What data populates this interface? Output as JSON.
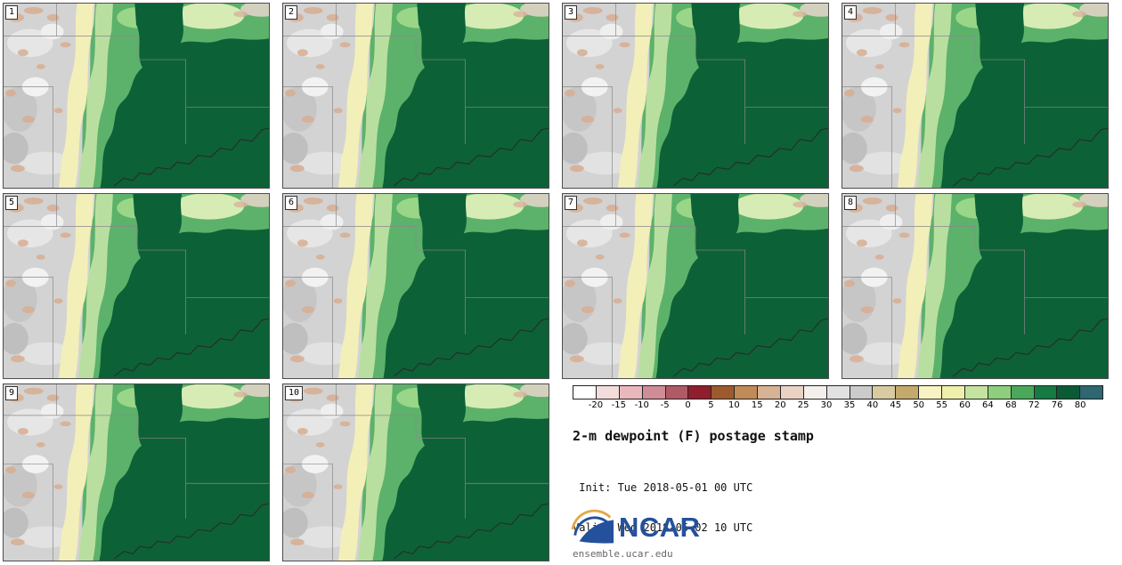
{
  "panels": [
    {
      "label": "1"
    },
    {
      "label": "2"
    },
    {
      "label": "3"
    },
    {
      "label": "4"
    },
    {
      "label": "5"
    },
    {
      "label": "6"
    },
    {
      "label": "7"
    },
    {
      "label": "8"
    },
    {
      "label": "9"
    },
    {
      "label": "10"
    }
  ],
  "colorbar": {
    "tick_labels": [
      "-20",
      "-15",
      "-10",
      "-5",
      "0",
      "5",
      "10",
      "15",
      "20",
      "25",
      "30",
      "35",
      "40",
      "45",
      "50",
      "55",
      "60",
      "64",
      "68",
      "72",
      "76",
      "80"
    ],
    "segment_colors": [
      "#ffffff",
      "#f3dcdc",
      "#e9b8bd",
      "#cf8d98",
      "#b05a66",
      "#8f1f2c",
      "#9c5b2e",
      "#c08b58",
      "#d8b295",
      "#ead3c5",
      "#f4efed",
      "#e2e2e2",
      "#cbcbcb",
      "#d8cba2",
      "#c3aa6c",
      "#f7f3c2",
      "#eef0ab",
      "#c4e3a1",
      "#8ecf7d",
      "#4aa75c",
      "#167a43",
      "#0b5a36",
      "#2e6672"
    ]
  },
  "info": {
    "title": "2-m dewpoint (F) postage stamp",
    "init_line": " Init: Tue 2018-05-01 00 UTC",
    "valid_line": "Valid: Wed 2018-05-02 10 UTC",
    "logo_text": "NCAR",
    "footer": "ensemble.ucar.edu"
  },
  "map_palette": {
    "dry_gray": "#d3d3d3",
    "tan_speckle": "#d8ae92",
    "cream_band": "#f3efb8",
    "light_green": "#b9dfa0",
    "medium_green": "#5cb26a",
    "dark_green": "#0d6137"
  }
}
